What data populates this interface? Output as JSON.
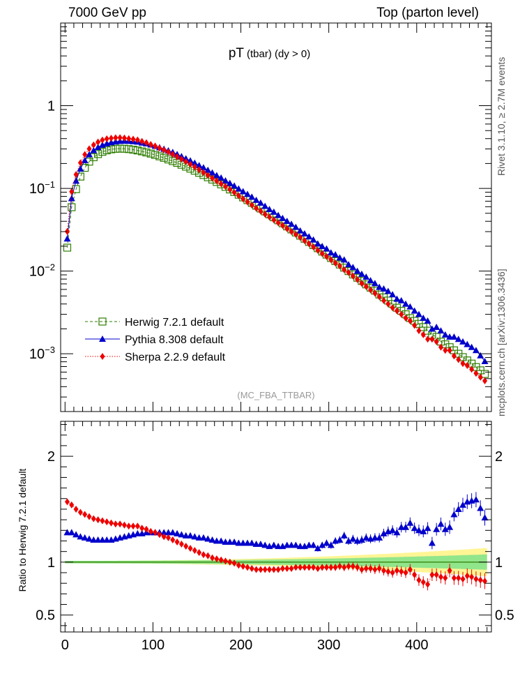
{
  "header": {
    "left": "7000 GeV pp",
    "right": "Top (parton level)"
  },
  "side_labels": {
    "top": "Rivet 3.1.10, ≥ 2.7M events",
    "bottom": "mcplots.cern.ch [arXiv:1306.3436]"
  },
  "chart_data": {
    "type": "scatter",
    "title_main": "pT",
    "title_sub": "(tbar) (dy > 0)",
    "watermark": "(MC_FBA_TTBAR)",
    "y_scale": "log",
    "xlim": [
      -5,
      485
    ],
    "ylim": [
      0.0002,
      10
    ],
    "ratio_ylim": [
      0.34,
      2.33
    ],
    "ratio_ylabel": "Ratio to Herwig 7.2.1 default",
    "upper_y_ticks": [
      {
        "value": 1,
        "base": "1",
        "exp": ""
      },
      {
        "value": 0.1,
        "base": "10",
        "exp": "−1"
      },
      {
        "value": 0.01,
        "base": "10",
        "exp": "−2"
      },
      {
        "value": 0.001,
        "base": "10",
        "exp": "−3"
      }
    ],
    "ratio_y_ticks": [
      {
        "value": 2,
        "label": "2"
      },
      {
        "value": 1,
        "label": "1"
      },
      {
        "value": 0.5,
        "label": "0.5"
      }
    ],
    "x_ticks": [
      {
        "value": 0,
        "label": "0"
      },
      {
        "value": 100,
        "label": "100"
      },
      {
        "value": 200,
        "label": "200"
      },
      {
        "value": 300,
        "label": "300"
      },
      {
        "value": 400,
        "label": "400"
      }
    ],
    "legend_position": "lower-left",
    "x": [
      2.5,
      7.5,
      12.5,
      17.5,
      22.5,
      27.5,
      32.5,
      37.5,
      42.5,
      47.5,
      52.5,
      57.5,
      62.5,
      67.5,
      72.5,
      77.5,
      82.5,
      87.5,
      92.5,
      97.5,
      102.5,
      107.5,
      112.5,
      117.5,
      122.5,
      127.5,
      132.5,
      137.5,
      142.5,
      147.5,
      152.5,
      157.5,
      162.5,
      167.5,
      172.5,
      177.5,
      182.5,
      187.5,
      192.5,
      197.5,
      202.5,
      207.5,
      212.5,
      217.5,
      222.5,
      227.5,
      232.5,
      237.5,
      242.5,
      247.5,
      252.5,
      257.5,
      262.5,
      267.5,
      272.5,
      277.5,
      282.5,
      287.5,
      292.5,
      297.5,
      302.5,
      307.5,
      312.5,
      317.5,
      322.5,
      327.5,
      332.5,
      337.5,
      342.5,
      347.5,
      352.5,
      357.5,
      362.5,
      367.5,
      372.5,
      377.5,
      382.5,
      387.5,
      392.5,
      397.5,
      402.5,
      407.5,
      412.5,
      417.5,
      422.5,
      427.5,
      432.5,
      437.5,
      442.5,
      447.5,
      452.5,
      457.5,
      462.5,
      467.5,
      472.5,
      477.5
    ],
    "series": [
      {
        "name": "Herwig 7.2.1 default",
        "color": "#2e7d00",
        "marker": "open-square",
        "line": "dashed",
        "values": [
          0.0192,
          0.0592,
          0.0978,
          0.1389,
          0.1773,
          0.2105,
          0.238,
          0.2599,
          0.2766,
          0.2886,
          0.2966,
          0.301,
          0.3025,
          0.3015,
          0.2985,
          0.2937,
          0.2875,
          0.2803,
          0.2721,
          0.2633,
          0.2539,
          0.2441,
          0.2341,
          0.2239,
          0.2136,
          0.2034,
          0.1932,
          0.1832,
          0.1733,
          0.1637,
          0.1543,
          0.1451,
          0.1363,
          0.1278,
          0.1196,
          0.1118,
          0.1043,
          0.0971,
          0.0903,
          0.0839,
          0.0778,
          0.0721,
          0.0668,
          0.0617,
          0.057,
          0.0526,
          0.0485,
          0.0447,
          0.0411,
          0.0378,
          0.0347,
          0.0319,
          0.0293,
          0.0268,
          0.0246,
          0.0225,
          0.0206,
          0.0189,
          0.0172,
          0.0158,
          0.0144,
          0.0132,
          0.012,
          0.011,
          0.01,
          0.0091,
          0.0083,
          0.0076,
          0.0069,
          0.0063,
          0.0058,
          0.0052,
          0.0048,
          0.0044,
          0.004,
          0.0036,
          0.0033,
          0.003,
          0.0027,
          0.0025,
          0.0023,
          0.0021,
          0.0019,
          0.0017,
          0.0016,
          0.0014,
          0.0013,
          0.0012,
          0.0011,
          0.001,
          0.00091,
          0.00083,
          0.00076,
          0.00069,
          0.00063,
          0.00057
        ]
      },
      {
        "name": "Pythia 8.308 default",
        "color": "#0000cc",
        "marker": "triangle",
        "line": "solid",
        "values": [
          0.0246,
          0.0758,
          0.1232,
          0.1721,
          0.218,
          0.2568,
          0.288,
          0.3145,
          0.3347,
          0.3492,
          0.3589,
          0.3672,
          0.3721,
          0.3739,
          0.3731,
          0.3701,
          0.3651,
          0.356,
          0.3483,
          0.337,
          0.325,
          0.3124,
          0.2996,
          0.2866,
          0.2734,
          0.2583,
          0.2434,
          0.229,
          0.2167,
          0.203,
          0.1898,
          0.1784,
          0.1663,
          0.1546,
          0.1435,
          0.1342,
          0.1241,
          0.1155,
          0.1075,
          0.099,
          0.0918,
          0.0851,
          0.0788,
          0.0722,
          0.0667,
          0.061,
          0.0558,
          0.0519,
          0.0473,
          0.0435,
          0.0402,
          0.037,
          0.034,
          0.0308,
          0.0283,
          0.0261,
          0.0239,
          0.0214,
          0.0199,
          0.0186,
          0.0167,
          0.0158,
          0.0145,
          0.0137,
          0.012,
          0.0111,
          0.01,
          0.0092,
          0.0085,
          0.0077,
          0.0071,
          0.0064,
          0.0061,
          0.0057,
          0.0052,
          0.0046,
          0.0044,
          0.004,
          0.0037,
          0.0033,
          0.003,
          0.0027,
          0.0025,
          0.002,
          0.0021,
          0.0019,
          0.0017,
          0.0016,
          0.0016,
          0.0015,
          0.0014,
          0.0013,
          0.0012,
          0.0011,
          0.00095,
          0.00081
        ]
      },
      {
        "name": "Sherpa 2.2.9 default",
        "color": "#ee0000",
        "marker": "diamond",
        "line": "dotted",
        "values": [
          0.0301,
          0.0913,
          0.147,
          0.2042,
          0.257,
          0.301,
          0.3355,
          0.3633,
          0.3846,
          0.3982,
          0.405,
          0.4094,
          0.4102,
          0.407,
          0.4,
          0.3935,
          0.3853,
          0.3699,
          0.3563,
          0.3396,
          0.325,
          0.3076,
          0.2914,
          0.2754,
          0.2584,
          0.2411,
          0.226,
          0.2107,
          0.1958,
          0.1817,
          0.1682,
          0.1553,
          0.1445,
          0.1328,
          0.1232,
          0.114,
          0.1053,
          0.0971,
          0.0894,
          0.0814,
          0.0747,
          0.0685,
          0.0628,
          0.0574,
          0.053,
          0.0487,
          0.0451,
          0.0416,
          0.0384,
          0.0356,
          0.0326,
          0.03,
          0.0278,
          0.0255,
          0.0233,
          0.0214,
          0.0196,
          0.0178,
          0.0163,
          0.015,
          0.0137,
          0.0125,
          0.0115,
          0.0104,
          0.0096,
          0.0087,
          0.0079,
          0.0071,
          0.0065,
          0.0059,
          0.0054,
          0.0049,
          0.0044,
          0.004,
          0.0036,
          0.0033,
          0.003,
          0.0027,
          0.0025,
          0.0022,
          0.0019,
          0.0017,
          0.0015,
          0.0015,
          0.0014,
          0.0012,
          0.0011,
          0.0011,
          0.00094,
          0.00085,
          0.00076,
          0.00072,
          0.00065,
          0.00058,
          0.00052,
          0.00047
        ]
      }
    ],
    "ratio": [
      {
        "name": "Pythia 8.308 default",
        "color": "#0000cc",
        "marker": "triangle",
        "values": [
          1.28,
          1.28,
          1.26,
          1.24,
          1.23,
          1.22,
          1.21,
          1.21,
          1.21,
          1.21,
          1.21,
          1.22,
          1.23,
          1.24,
          1.25,
          1.26,
          1.27,
          1.27,
          1.28,
          1.28,
          1.28,
          1.28,
          1.28,
          1.28,
          1.28,
          1.27,
          1.26,
          1.25,
          1.25,
          1.24,
          1.23,
          1.23,
          1.22,
          1.21,
          1.2,
          1.2,
          1.19,
          1.19,
          1.19,
          1.18,
          1.18,
          1.18,
          1.18,
          1.17,
          1.17,
          1.16,
          1.15,
          1.16,
          1.15,
          1.15,
          1.16,
          1.16,
          1.16,
          1.15,
          1.15,
          1.16,
          1.16,
          1.13,
          1.16,
          1.18,
          1.16,
          1.2,
          1.21,
          1.25,
          1.2,
          1.22,
          1.2,
          1.21,
          1.23,
          1.22,
          1.23,
          1.23,
          1.27,
          1.29,
          1.3,
          1.28,
          1.33,
          1.33,
          1.37,
          1.32,
          1.3,
          1.29,
          1.32,
          1.18,
          1.31,
          1.36,
          1.31,
          1.33,
          1.45,
          1.5,
          1.54,
          1.57,
          1.58,
          1.59,
          1.51,
          1.42
        ]
      },
      {
        "name": "Sherpa 2.2.9 default",
        "color": "#ee0000",
        "marker": "diamond",
        "values": [
          1.57,
          1.54,
          1.5,
          1.47,
          1.45,
          1.43,
          1.41,
          1.4,
          1.39,
          1.38,
          1.37,
          1.36,
          1.36,
          1.35,
          1.34,
          1.34,
          1.34,
          1.32,
          1.31,
          1.29,
          1.28,
          1.26,
          1.24,
          1.23,
          1.21,
          1.19,
          1.17,
          1.15,
          1.13,
          1.11,
          1.09,
          1.07,
          1.06,
          1.04,
          1.03,
          1.02,
          1.01,
          1.0,
          0.99,
          0.97,
          0.96,
          0.95,
          0.94,
          0.93,
          0.93,
          0.93,
          0.93,
          0.93,
          0.93,
          0.94,
          0.94,
          0.94,
          0.95,
          0.95,
          0.95,
          0.95,
          0.95,
          0.94,
          0.95,
          0.95,
          0.95,
          0.95,
          0.96,
          0.95,
          0.96,
          0.96,
          0.95,
          0.93,
          0.94,
          0.94,
          0.93,
          0.94,
          0.92,
          0.91,
          0.9,
          0.92,
          0.91,
          0.9,
          0.93,
          0.88,
          0.83,
          0.81,
          0.79,
          0.88,
          0.88,
          0.86,
          0.85,
          0.92,
          0.85,
          0.85,
          0.84,
          0.87,
          0.86,
          0.84,
          0.83,
          0.82
        ]
      }
    ]
  }
}
